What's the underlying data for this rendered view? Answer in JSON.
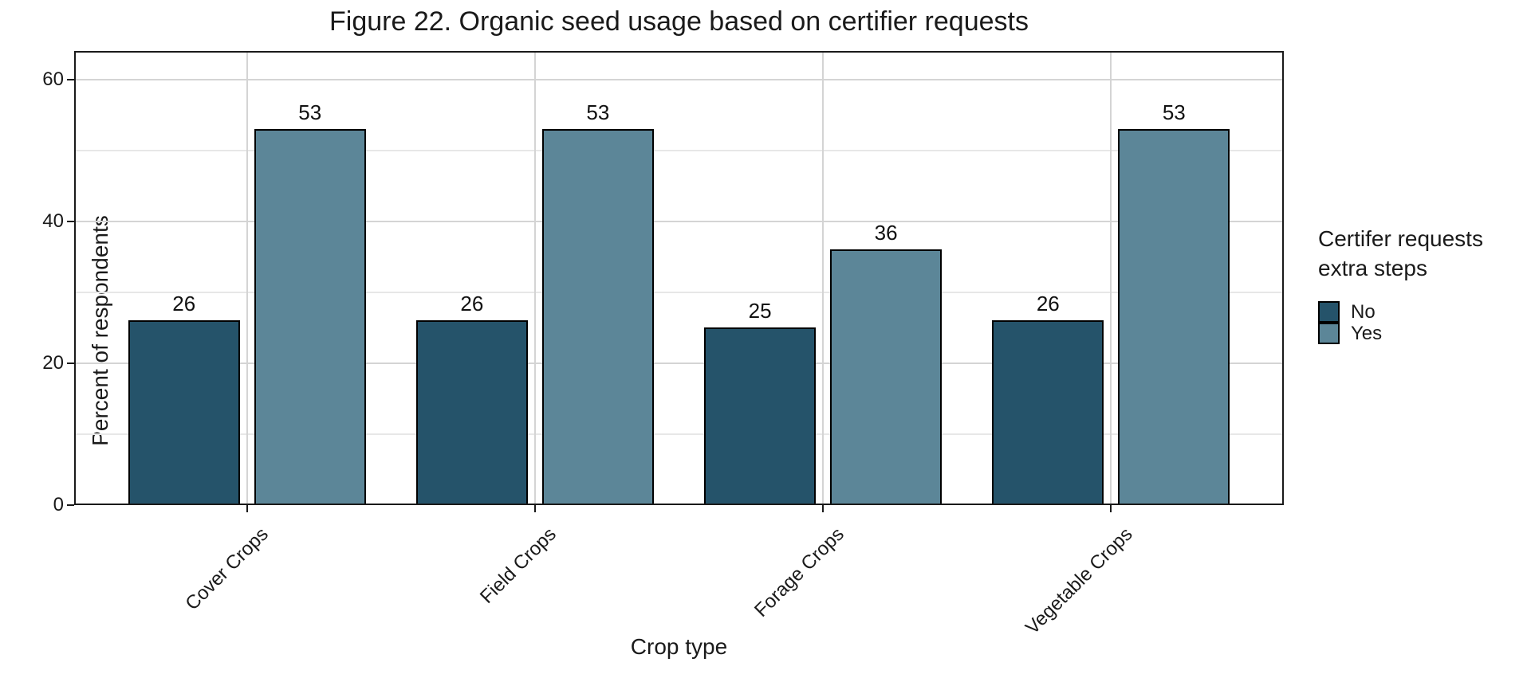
{
  "chart_data": {
    "type": "bar",
    "title": "Figure 22. Organic seed usage based on certifier requests",
    "xlabel": "Crop type",
    "ylabel": "Percent of respondents",
    "categories": [
      "Cover Crops",
      "Field Crops",
      "Forage Crops",
      "Vegetable Crops"
    ],
    "series": [
      {
        "name": "No",
        "values": [
          26,
          26,
          25,
          26
        ],
        "color": "#25536A"
      },
      {
        "name": "Yes",
        "values": [
          53,
          53,
          36,
          53
        ],
        "color": "#5C8698"
      }
    ],
    "bar_value_labels": [
      [
        26,
        26,
        25,
        26
      ],
      [
        53,
        53,
        36,
        53
      ]
    ],
    "legend_title_lines": [
      "Certifer requests",
      "extra steps"
    ],
    "legend_position": "right",
    "y_ticks": [
      0,
      20,
      40,
      60
    ],
    "y_minor_ticks": [
      10,
      30,
      50
    ],
    "ylim": [
      0,
      64
    ],
    "grid": "horizontal major and minor gridlines; vertical gridline at each category center",
    "colors": {
      "bar_outline": "#000000",
      "grid_major": "#d4d4d4",
      "grid_minor": "#e7e7e7",
      "panel_border": "#1a1a1a",
      "text": "#1a1a1a",
      "background": "#ffffff"
    }
  }
}
